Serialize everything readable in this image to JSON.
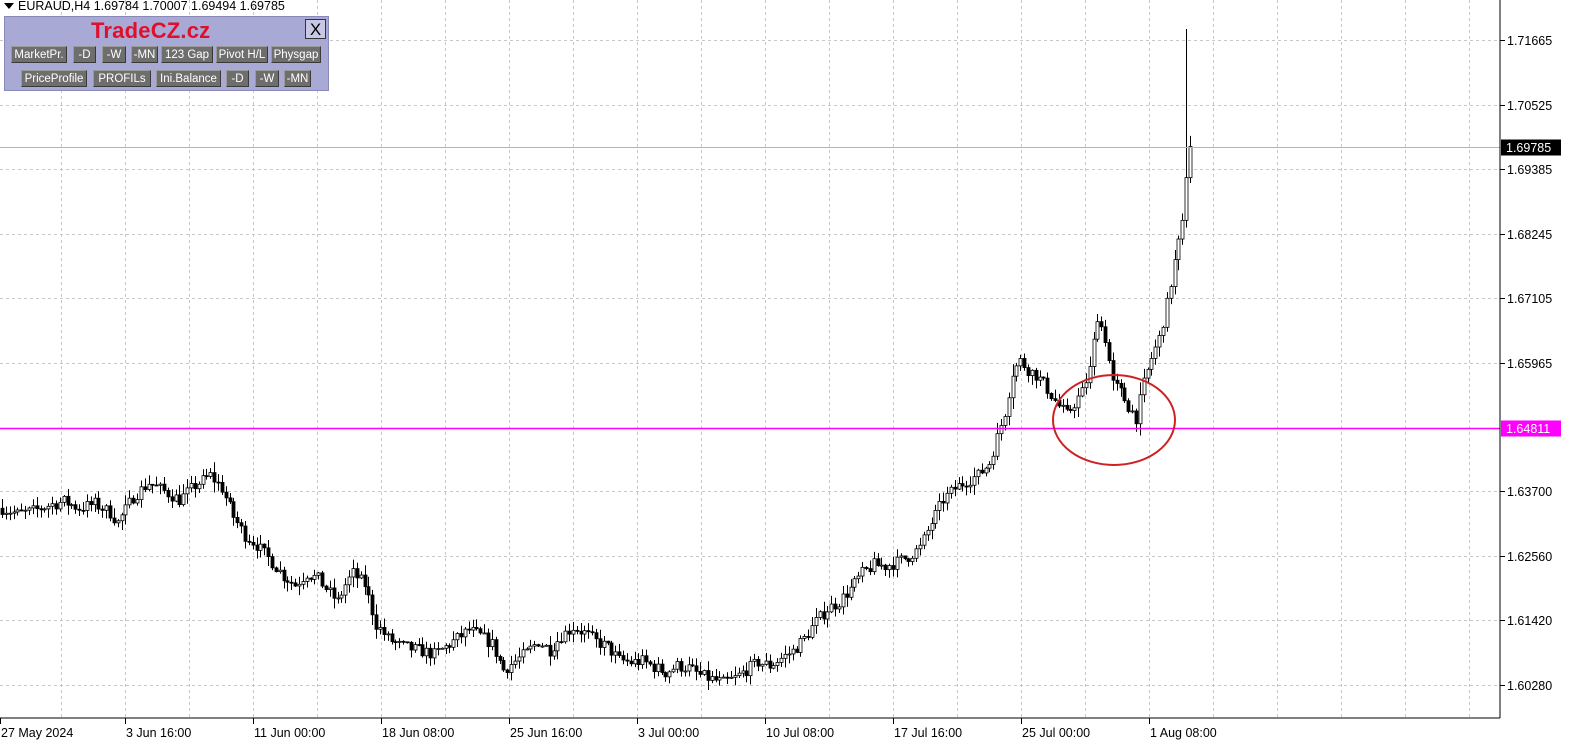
{
  "header": {
    "symbol_line": "EURAUD,H4  1.69784 1.70007 1.69494 1.69785"
  },
  "panel": {
    "title": "TradeCZ.cz",
    "close_label": "X",
    "row1": [
      "MarketPr.",
      "-D",
      "-W",
      "-MN",
      "123 Gap",
      "Pivot H/L",
      "Physgap"
    ],
    "row2": [
      "PriceProfile",
      "PROFILs",
      "Ini.Balance",
      "-D",
      "-W",
      "-MN"
    ],
    "background_color": "#a9a9d6",
    "title_color": "#e0102c"
  },
  "price_axis": {
    "labels": [
      "1.71665",
      "1.70525",
      "1.69385",
      "1.68245",
      "1.67105",
      "1.65965",
      "1.63700",
      "1.62560",
      "1.61420",
      "1.60280"
    ],
    "current_price": "1.69785",
    "level_price": "1.64811",
    "level_color": "#ff00ff"
  },
  "time_axis": {
    "labels": [
      "27 May 2024",
      "3 Jun 16:00",
      "11 Jun 00:00",
      "18 Jun 08:00",
      "25 Jun 16:00",
      "3 Jul 00:00",
      "10 Jul 08:00",
      "17 Jul 16:00",
      "25 Jul 00:00",
      "1 Aug 08:00"
    ]
  },
  "annotation": {
    "circle_color": "#cc2222"
  },
  "chart_data": {
    "type": "candlestick",
    "title": "EURAUD,H4",
    "ylim": [
      1.5985,
      1.7225
    ],
    "y_ticks": [
      1.71665,
      1.70525,
      1.69385,
      1.68245,
      1.67105,
      1.65965,
      1.637,
      1.6256,
      1.6142,
      1.6028
    ],
    "x_labels": [
      "27 May 2024",
      "3 Jun 16:00",
      "11 Jun 00:00",
      "18 Jun 08:00",
      "25 Jun 16:00",
      "3 Jul 00:00",
      "10 Jul 08:00",
      "17 Jul 16:00",
      "25 Jul 00:00",
      "1 Aug 08:00"
    ],
    "horizontal_level": 1.64811,
    "last_price": 1.69785,
    "approx_close_path": [
      [
        0,
        1.634
      ],
      [
        4,
        1.633
      ],
      [
        8,
        1.6335
      ],
      [
        12,
        1.6345
      ],
      [
        16,
        1.6352
      ],
      [
        20,
        1.634
      ],
      [
        24,
        1.6348
      ],
      [
        28,
        1.6332
      ],
      [
        30,
        1.6315
      ],
      [
        34,
        1.636
      ],
      [
        38,
        1.6385
      ],
      [
        42,
        1.637
      ],
      [
        46,
        1.6355
      ],
      [
        50,
        1.638
      ],
      [
        54,
        1.6398
      ],
      [
        57,
        1.6375
      ],
      [
        60,
        1.6325
      ],
      [
        63,
        1.6292
      ],
      [
        66,
        1.6275
      ],
      [
        70,
        1.6245
      ],
      [
        73,
        1.622
      ],
      [
        76,
        1.6205
      ],
      [
        79,
        1.6225
      ],
      [
        82,
        1.6215
      ],
      [
        85,
        1.619
      ],
      [
        87,
        1.6175
      ],
      [
        89,
        1.6205
      ],
      [
        91,
        1.6225
      ],
      [
        94,
        1.6205
      ],
      [
        97,
        1.6135
      ],
      [
        100,
        1.611
      ],
      [
        103,
        1.6098
      ],
      [
        106,
        1.6092
      ],
      [
        109,
        1.6088
      ],
      [
        112,
        1.6082
      ],
      [
        115,
        1.6095
      ],
      [
        118,
        1.611
      ],
      [
        121,
        1.6125
      ],
      [
        124,
        1.6115
      ],
      [
        127,
        1.61
      ],
      [
        130,
        1.6055
      ],
      [
        133,
        1.607
      ],
      [
        136,
        1.6085
      ],
      [
        139,
        1.6105
      ],
      [
        142,
        1.609
      ],
      [
        145,
        1.6115
      ],
      [
        148,
        1.613
      ],
      [
        151,
        1.612
      ],
      [
        154,
        1.6105
      ],
      [
        157,
        1.6095
      ],
      [
        160,
        1.6072
      ],
      [
        163,
        1.6068
      ],
      [
        166,
        1.607
      ],
      [
        169,
        1.606
      ],
      [
        172,
        1.605
      ],
      [
        175,
        1.6062
      ],
      [
        178,
        1.6058
      ],
      [
        181,
        1.6045
      ],
      [
        184,
        1.6038
      ],
      [
        187,
        1.6032
      ],
      [
        190,
        1.604
      ],
      [
        193,
        1.6055
      ],
      [
        196,
        1.6068
      ],
      [
        199,
        1.6062
      ],
      [
        202,
        1.6075
      ],
      [
        205,
        1.6088
      ],
      [
        208,
        1.611
      ],
      [
        211,
        1.614
      ],
      [
        214,
        1.6162
      ],
      [
        217,
        1.6175
      ],
      [
        220,
        1.6198
      ],
      [
        223,
        1.6225
      ],
      [
        226,
        1.624
      ],
      [
        229,
        1.6238
      ],
      [
        232,
        1.6245
      ],
      [
        235,
        1.6255
      ],
      [
        238,
        1.627
      ],
      [
        241,
        1.6315
      ],
      [
        244,
        1.6355
      ],
      [
        247,
        1.6375
      ],
      [
        250,
        1.6388
      ],
      [
        253,
        1.6398
      ],
      [
        256,
        1.642
      ],
      [
        258,
        1.6465
      ],
      [
        260,
        1.651
      ],
      [
        262,
        1.658
      ],
      [
        264,
        1.66
      ],
      [
        266,
        1.6585
      ],
      [
        268,
        1.6575
      ],
      [
        270,
        1.656
      ],
      [
        272,
        1.654
      ],
      [
        274,
        1.652
      ],
      [
        276,
        1.6505
      ],
      [
        278,
        1.6525
      ],
      [
        280,
        1.6545
      ],
      [
        282,
        1.6585
      ],
      [
        284,
        1.668
      ],
      [
        286,
        1.664
      ],
      [
        288,
        1.656
      ],
      [
        290,
        1.6545
      ],
      [
        292,
        1.652
      ],
      [
        294,
        1.65
      ],
      [
        296,
        1.656
      ],
      [
        298,
        1.6605
      ],
      [
        300,
        1.664
      ],
      [
        302,
        1.67
      ],
      [
        304,
        1.6775
      ],
      [
        306,
        1.684
      ],
      [
        307,
        1.693
      ],
      [
        308,
        1.6978
      ]
    ]
  }
}
